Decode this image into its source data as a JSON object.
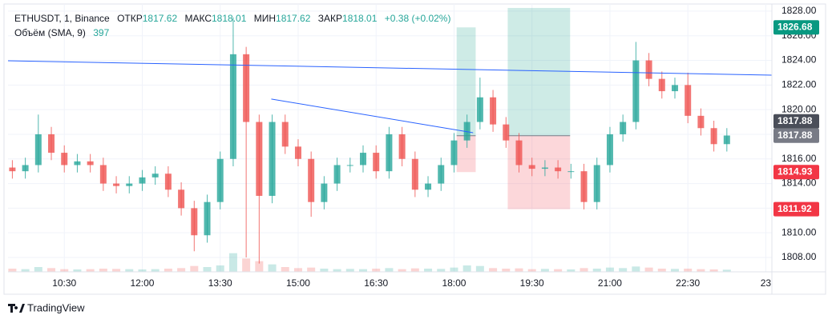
{
  "chart_data": {
    "type": "candlestick",
    "header": {
      "symbol": "ETHUSDT, 1, Binance",
      "open_label": "ОТКР",
      "open": "1817.62",
      "high_label": "МАКС",
      "high": "1818.01",
      "low_label": "МИН",
      "low": "1817.62",
      "close_label": "ЗАКР",
      "close": "1818.01",
      "change": "+0.38 (+0.02%)",
      "volume_label": "Объём (SMA, 9)",
      "volume": "397"
    },
    "up_color": "#26a69a",
    "down_color": "#ef5350",
    "grid": true,
    "x": [
      570,
      585,
      600,
      615,
      630,
      645,
      660,
      675,
      690,
      705,
      720,
      735,
      750,
      765,
      780,
      795,
      810,
      825,
      840,
      855,
      870,
      885,
      900,
      915,
      930,
      945,
      960,
      975,
      990,
      1005,
      1020,
      1035,
      1050,
      1065,
      1080,
      1095,
      1110,
      1125,
      1140,
      1155,
      1170,
      1185,
      1200,
      1215,
      1230,
      1245,
      1260,
      1275,
      1290,
      1305,
      1320,
      1335,
      1350,
      1365,
      1380,
      1395
    ],
    "open": [
      1815.3,
      1815,
      1815.5,
      1818,
      1816.5,
      1815.5,
      1815.8,
      1815.5,
      1814,
      1813.8,
      1814,
      1814.5,
      1814.8,
      1813.5,
      1812,
      1809.8,
      1812.5,
      1816,
      1824.5,
      1819,
      1813,
      1819,
      1817,
      1816,
      1812.5,
      1814,
      1815.5,
      1815.5,
      1816.5,
      1815,
      1818,
      1816,
      1813.5,
      1814,
      1815.5,
      1817.5,
      1819,
      1821,
      1818.8,
      1817.5,
      1815.5,
      1815.2,
      1815.3,
      1815,
      1815,
      1812.5,
      1815.5,
      1818,
      1819,
      1824,
      1822.5,
      1821.5,
      1822,
      1819.5,
      1818.5,
      1817.2
    ],
    "high": [
      1815.9,
      1816.1,
      1819.6,
      1818.6,
      1817.1,
      1816.4,
      1816.4,
      1816.1,
      1814.6,
      1814.6,
      1815.1,
      1815.4,
      1815.4,
      1814.1,
      1812.6,
      1813.1,
      1816.6,
      1827.5,
      1825.1,
      1819.6,
      1819.6,
      1819.6,
      1817.6,
      1816.6,
      1814.6,
      1816.1,
      1816.1,
      1817.1,
      1817.1,
      1818.6,
      1818.6,
      1816.6,
      1814.6,
      1816.1,
      1818.1,
      1819.6,
      1822.6,
      1821.6,
      1819.4,
      1818.1,
      1816.1,
      1815.9,
      1815.9,
      1815.6,
      1815.6,
      1816.1,
      1818.6,
      1819.6,
      1825.5,
      1824.6,
      1823.1,
      1822.6,
      1823,
      1820.1,
      1819.1,
      1818.5
    ],
    "low": [
      1814.4,
      1814.4,
      1814.9,
      1815.9,
      1814.9,
      1814.9,
      1814.9,
      1813.4,
      1813.2,
      1813.2,
      1813.4,
      1813.9,
      1812.9,
      1811.4,
      1808.5,
      1809.2,
      1811.9,
      1815.4,
      1808,
      1807.5,
      1812.4,
      1816.4,
      1815.4,
      1811.3,
      1811.9,
      1813.4,
      1814.9,
      1814.9,
      1814.4,
      1814.4,
      1815.4,
      1812.9,
      1812.9,
      1813.4,
      1814.9,
      1816.9,
      1818.4,
      1818.2,
      1816.9,
      1814.9,
      1814.6,
      1814.6,
      1814.4,
      1814.4,
      1811.9,
      1811.9,
      1814.9,
      1817.4,
      1818.4,
      1821.9,
      1820.9,
      1820.9,
      1818.9,
      1817.9,
      1816.6,
      1816.6
    ],
    "close": [
      1815,
      1815.5,
      1818,
      1816.5,
      1815.5,
      1815.8,
      1815.5,
      1814,
      1813.8,
      1814,
      1814.5,
      1814.8,
      1813.5,
      1812,
      1809.8,
      1812.5,
      1816,
      1824.5,
      1819,
      1813,
      1819,
      1817,
      1816,
      1812.5,
      1814,
      1815.5,
      1815.5,
      1816.5,
      1815,
      1818,
      1816,
      1813.5,
      1814,
      1815.5,
      1817.5,
      1819,
      1821,
      1818.8,
      1817.5,
      1815.5,
      1815.2,
      1815.3,
      1815,
      1815,
      1812.5,
      1815.5,
      1818,
      1819,
      1824,
      1822.5,
      1821.5,
      1822,
      1819.5,
      1818.5,
      1817.2,
      1817.9
    ],
    "volume": [
      600,
      500,
      900,
      700,
      500,
      450,
      500,
      600,
      550,
      500,
      450,
      500,
      600,
      700,
      1100,
      900,
      1200,
      3500,
      2500,
      2000,
      1400,
      900,
      700,
      800,
      600,
      500,
      550,
      500,
      600,
      700,
      500,
      650,
      600,
      550,
      800,
      1200,
      1100,
      700,
      600,
      650,
      500,
      550,
      500,
      450,
      700,
      600,
      800,
      700,
      1000,
      800,
      600,
      550,
      600,
      500,
      450,
      400
    ],
    "volume_ylim": [
      0,
      6000
    ],
    "xlim": [
      565,
      1447
    ],
    "xticks": [
      {
        "value": 630,
        "label": "10:30"
      },
      {
        "value": 720,
        "label": "12:00"
      },
      {
        "value": 810,
        "label": "13:30"
      },
      {
        "value": 900,
        "label": "15:00"
      },
      {
        "value": 990,
        "label": "16:30"
      },
      {
        "value": 1080,
        "label": "18:00"
      },
      {
        "value": 1170,
        "label": "19:30"
      },
      {
        "value": 1260,
        "label": "21:00"
      },
      {
        "value": 1350,
        "label": "22:30"
      },
      {
        "value": 1440,
        "label": "23"
      }
    ],
    "ylim": [
      1806.83,
      1828.58
    ],
    "yticks": [
      {
        "value": 1808,
        "label": "1808.00"
      },
      {
        "value": 1810,
        "label": "1810.00"
      },
      {
        "value": 1812,
        "label": "1812.00"
      },
      {
        "value": 1814,
        "label": "1814.00"
      },
      {
        "value": 1816,
        "label": "1816.00"
      },
      {
        "value": 1818,
        "label": "1818.00"
      },
      {
        "value": 1820,
        "label": "1820.00"
      },
      {
        "value": 1822,
        "label": "1822.00"
      },
      {
        "value": 1824,
        "label": "1824.00"
      },
      {
        "value": 1826,
        "label": "1826.00"
      },
      {
        "value": 1828,
        "label": "1828.00"
      }
    ],
    "price_labels": [
      {
        "value": 1826.68,
        "label": "1826.68",
        "color": "#089981"
      },
      {
        "value": 1817.88,
        "label": "1817.88",
        "color": "#787b86"
      },
      {
        "value": 1817.88,
        "label": "1817.88",
        "color": "#4a4e59"
      },
      {
        "value": 1814.93,
        "label": "1814.93",
        "color": "#f23645"
      },
      {
        "value": 1811.92,
        "label": "1811.92",
        "color": "#f23645"
      }
    ],
    "trendline_color": "#2962ff",
    "trendlines": [
      {
        "x": [
          565,
          1447
        ],
        "y": [
          1823.97,
          1822.8
        ]
      },
      {
        "x": [
          869,
          1102
        ],
        "y": [
          1820.86,
          1818.13
        ]
      }
    ],
    "positions": [
      {
        "x": [
          1083,
          1105
        ],
        "entry": 1817.88,
        "target": 1826.68,
        "stop": 1814.93
      },
      {
        "x": [
          1142,
          1214
        ],
        "entry": 1817.88,
        "target": 1828.26,
        "stop": 1811.92
      }
    ],
    "brand": "TradingView"
  }
}
